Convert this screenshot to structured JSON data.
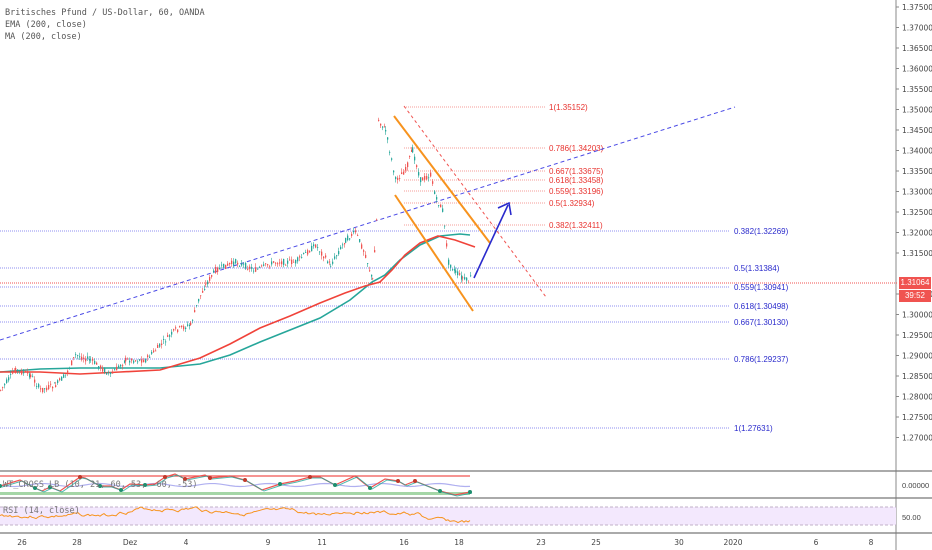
{
  "header": {
    "symbol_title": "Britisches Pfund / US-Dollar, 60, OANDA",
    "indicators": [
      "EMA (200, close)",
      "MA (200, close)"
    ]
  },
  "panes": {
    "wt_cross_label": "WT_CROSS_LB (10, 21, 60, 53, -60, -53)",
    "wt_zero_label": "0.00000",
    "rsi_label": "RSI (14, close)",
    "rsi_level_label": "50.00"
  },
  "price_axis": {
    "ticks": [
      "1.37500",
      "1.37000",
      "1.36500",
      "1.36000",
      "1.35500",
      "1.35000",
      "1.34500",
      "1.34000",
      "1.33500",
      "1.33000",
      "1.32500",
      "1.32000",
      "1.31500",
      "1.30500",
      "1.30000",
      "1.29500",
      "1.29000",
      "1.28500",
      "1.28000",
      "1.27500",
      "1.27000"
    ],
    "current_price": "1.31064",
    "countdown": "39:52"
  },
  "time_axis": {
    "ticks": [
      "26",
      "28",
      "Dez",
      "4",
      "9",
      "11",
      "16",
      "18",
      "23",
      "25",
      "30",
      "2020",
      "6",
      "8"
    ]
  },
  "colors": {
    "bull": "#26a69a",
    "bear": "#ef5350",
    "ema": "#26a69a",
    "ma": "#f0433a",
    "fib_red": "#f05350",
    "fib_blue": "#3f3fe0",
    "channel": "#f7931e",
    "trendline": "#4a4ae6",
    "rsi": "#f7931e",
    "rsi_bg": "#f3e8fd"
  },
  "chart_data": {
    "type": "candlestick",
    "title": "Britisches Pfund / US-Dollar, 60, OANDA",
    "xlabel": "",
    "ylabel": "",
    "ylim": [
      1.2645,
      1.3785
    ],
    "x_ticks": [
      "26",
      "28",
      "Dez",
      "4",
      "9",
      "11",
      "16",
      "18",
      "23",
      "25",
      "30",
      "2020",
      "6",
      "8"
    ],
    "current_price": 1.31064,
    "approx_closes": [
      {
        "x": "25",
        "y": 1.2895
      },
      {
        "x": "26",
        "y": 1.2905
      },
      {
        "x": "27",
        "y": 1.286
      },
      {
        "x": "28",
        "y": 1.292
      },
      {
        "x": "29",
        "y": 1.2905
      },
      {
        "x": "Dez",
        "y": 1.2925
      },
      {
        "x": "3",
        "y": 1.2985
      },
      {
        "x": "4",
        "y": 1.303
      },
      {
        "x": "5",
        "y": 1.3135
      },
      {
        "x": "6",
        "y": 1.315
      },
      {
        "x": "9",
        "y": 1.314
      },
      {
        "x": "10",
        "y": 1.316
      },
      {
        "x": "11",
        "y": 1.32
      },
      {
        "x": "12",
        "y": 1.311
      },
      {
        "x": "13",
        "y": 1.348
      },
      {
        "x": "16",
        "y": 1.335
      },
      {
        "x": "17",
        "y": 1.324
      },
      {
        "x": "18",
        "y": 1.3106
      }
    ],
    "series": [
      {
        "name": "EMA (200, close)",
        "color": "#26a69a"
      },
      {
        "name": "MA (200, close)",
        "color": "#f0433a"
      }
    ],
    "fib_retracement_red": [
      {
        "level": "1",
        "value": 1.35152
      },
      {
        "level": "0.786",
        "value": 1.34203
      },
      {
        "level": "0.667",
        "value": 1.33675
      },
      {
        "level": "0.618",
        "value": 1.33458
      },
      {
        "level": "0.559",
        "value": 1.33196
      },
      {
        "level": "0.5",
        "value": 1.32934
      },
      {
        "level": "0.382",
        "value": 1.32411
      }
    ],
    "fib_retracement_blue": [
      {
        "level": "0.382",
        "value": 1.32269
      },
      {
        "level": "0.5",
        "value": 1.31384
      },
      {
        "level": "0.559",
        "value": 1.30941
      },
      {
        "level": "0.618",
        "value": 1.30498
      },
      {
        "level": "0.667",
        "value": 1.3013
      },
      {
        "level": "0.786",
        "value": 1.29237
      },
      {
        "level": "1",
        "value": 1.27631
      }
    ],
    "annotations": [
      "descending orange channel",
      "blue dashed ascending trendline",
      "blue arrow projecting upward to ~1.329",
      "red dotted descending line"
    ],
    "sub_panes": [
      {
        "name": "WT_CROSS_LB (10, 21, 60, 53, -60, -53)",
        "zero": "0.00000"
      },
      {
        "name": "RSI (14, close)",
        "level": "50.00"
      }
    ]
  }
}
